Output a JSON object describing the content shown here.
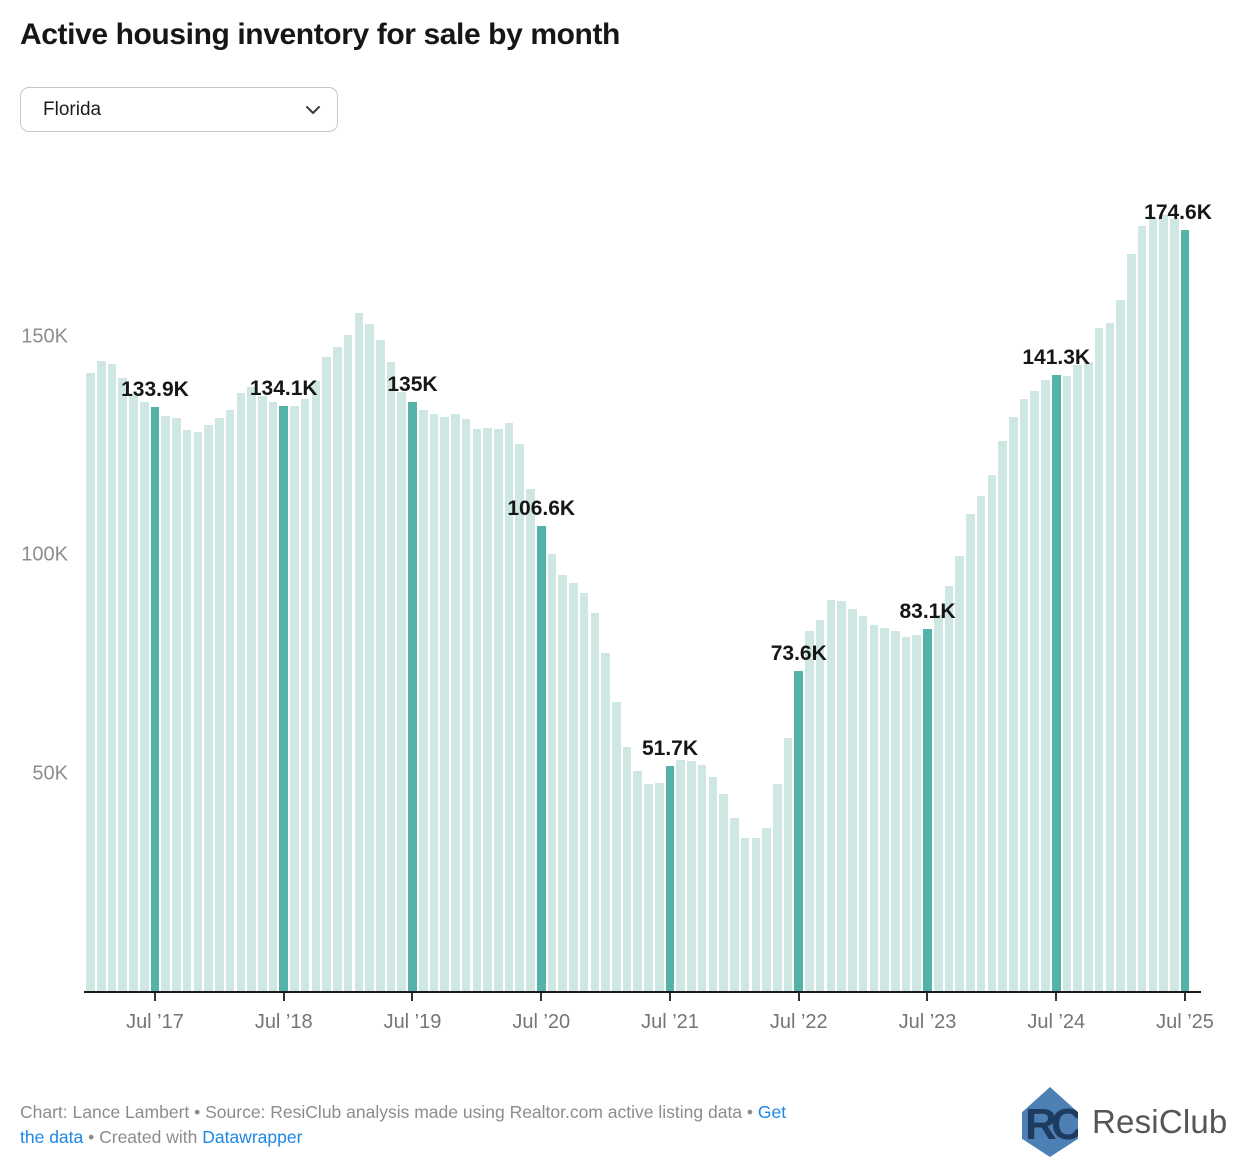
{
  "header": {
    "title": "Active housing inventory for sale by month"
  },
  "controls": {
    "region_selector": {
      "value": "Florida"
    }
  },
  "chart_data": {
    "type": "bar",
    "title": "Active housing inventory for sale by month",
    "region": "Florida",
    "unit": "thousands of active listings",
    "start_month": "2017-01",
    "end_month": "2025-07",
    "ylim": [
      0,
      183
    ],
    "grid": false,
    "y_ticks": [
      {
        "value": 50,
        "label": "50K"
      },
      {
        "value": 100,
        "label": "100K"
      },
      {
        "value": 150,
        "label": "150K"
      }
    ],
    "x_ticks": [
      "Jul ’17",
      "Jul ’18",
      "Jul ’19",
      "Jul ’20",
      "Jul ’21",
      "Jul ’22",
      "Jul ’23",
      "Jul ’24",
      "Jul ’25"
    ],
    "values_k": [
      141.7,
      144.6,
      143.8,
      140.5,
      137.0,
      135.0,
      133.9,
      131.9,
      131.5,
      128.7,
      128.3,
      129.9,
      131.4,
      133.3,
      137.1,
      138.6,
      136.4,
      135.2,
      134.1,
      134.2,
      135.7,
      140.0,
      145.3,
      147.8,
      150.5,
      155.4,
      153.0,
      149.3,
      144.3,
      137.5,
      135.0,
      133.3,
      132.3,
      131.7,
      132.4,
      131.1,
      129.0,
      129.1,
      129.0,
      130.2,
      125.5,
      115.2,
      106.6,
      100.4,
      95.5,
      93.6,
      91.3,
      86.7,
      77.6,
      66.5,
      56.2,
      50.5,
      47.6,
      47.8,
      51.7,
      53.1,
      53.0,
      52.0,
      49.3,
      45.3,
      39.8,
      35.2,
      35.3,
      37.5,
      47.6,
      58.2,
      73.6,
      82.6,
      85.1,
      89.7,
      89.5,
      87.8,
      86.0,
      84.1,
      83.4,
      82.7,
      81.4,
      81.8,
      83.1,
      86.3,
      93.0,
      99.8,
      109.4,
      113.6,
      118.4,
      126.2,
      131.6,
      135.8,
      137.7,
      140.1,
      141.3,
      141.0,
      143.5,
      144.2,
      152.1,
      153.3,
      158.5,
      168.9,
      175.4,
      177.3,
      178.0,
      177.1,
      174.6
    ],
    "annotations": [
      {
        "month": "Jul '17",
        "index": 6,
        "label": "133.9K"
      },
      {
        "month": "Jul '18",
        "index": 18,
        "label": "134.1K"
      },
      {
        "month": "Jul '19",
        "index": 30,
        "label": "135K"
      },
      {
        "month": "Jul '20",
        "index": 42,
        "label": "106.6K"
      },
      {
        "month": "Jul '21",
        "index": 54,
        "label": "51.7K"
      },
      {
        "month": "Jul '22",
        "index": 66,
        "label": "73.6K"
      },
      {
        "month": "Jul '23",
        "index": 78,
        "label": "83.1K"
      },
      {
        "month": "Jul '24",
        "index": 90,
        "label": "141.3K"
      },
      {
        "month": "Jul '25",
        "index": 102,
        "label": "174.6K"
      }
    ],
    "colors": {
      "bar": "#cfe7e3",
      "highlight": "#55b2a9"
    }
  },
  "footer": {
    "line1_text": "Chart: Lance Lambert • Source: ResiClub analysis made using Realtor.com active listing data • ",
    "line1_link": "Get",
    "line2_link1": "the data",
    "line2_mid": " • Created with ",
    "line2_link2": "Datawrapper"
  },
  "logo": {
    "monogram_left": "R",
    "monogram_right": "C",
    "text": "ResiClub"
  }
}
